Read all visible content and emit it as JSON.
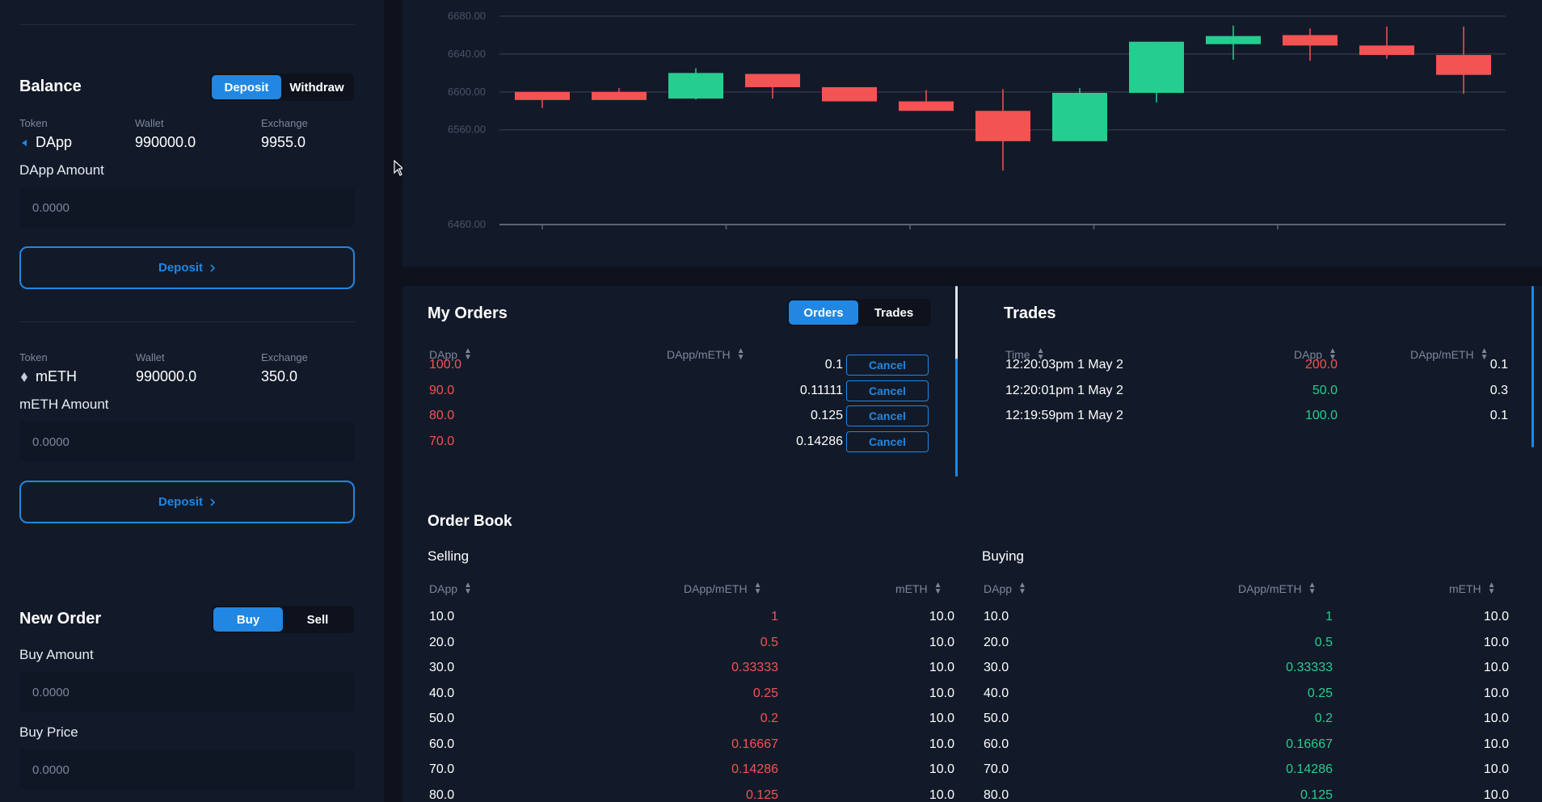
{
  "colors": {
    "accent": "#2187e2",
    "sell": "#f45353",
    "buy": "#25ce8f",
    "panel": "#121a29",
    "background": "#0d121d"
  },
  "balance": {
    "title": "Balance",
    "tabs": [
      {
        "label": "Deposit",
        "active": true
      },
      {
        "label": "Withdraw",
        "active": false
      }
    ],
    "col_labels": {
      "token": "Token",
      "wallet": "Wallet",
      "exchange": "Exchange"
    },
    "dapp": {
      "icon": "dapp-token-icon",
      "token": "DApp",
      "wallet": "990000.0",
      "exchange": "9955.0",
      "amount_label": "DApp Amount",
      "amount_placeholder": "0.0000",
      "button": "Deposit"
    },
    "meth": {
      "icon": "eth-diamond-icon",
      "token": "mETH",
      "wallet": "990000.0",
      "exchange": "350.0",
      "amount_label": "mETH Amount",
      "amount_placeholder": "0.0000",
      "button": "Deposit"
    }
  },
  "new_order": {
    "title": "New Order",
    "tabs": [
      {
        "label": "Buy",
        "active": true
      },
      {
        "label": "Sell",
        "active": false
      }
    ],
    "amount_label": "Buy Amount",
    "amount_placeholder": "0.0000",
    "price_label": "Buy Price",
    "price_placeholder": "0.0000"
  },
  "chart_data": {
    "type": "candlestick",
    "y_ticks": [
      "6680.00",
      "6640.00",
      "6600.00",
      "6560.00",
      "6460.00"
    ],
    "ylim": [
      6460,
      6680
    ],
    "grid": true,
    "candles": [
      {
        "open": 6600,
        "close": 6593,
        "high": 6600,
        "low": 6583
      },
      {
        "open": 6600,
        "close": 6593,
        "high": 6604,
        "low": 6593
      },
      {
        "open": 6593,
        "close": 6620,
        "high": 6625,
        "low": 6592
      },
      {
        "open": 6619,
        "close": 6605,
        "high": 6619,
        "low": 6593
      },
      {
        "open": 6605,
        "close": 6590,
        "high": 6605,
        "low": 6590
      },
      {
        "open": 6590,
        "close": 6580,
        "high": 6602,
        "low": 6580
      },
      {
        "open": 6580,
        "close": 6548,
        "high": 6603,
        "low": 6517
      },
      {
        "open": 6548,
        "close": 6599,
        "high": 6604,
        "low": 6548
      },
      {
        "open": 6599,
        "close": 6653,
        "high": 6653,
        "low": 6589
      },
      {
        "open": 6652,
        "close": 6659,
        "high": 6670,
        "low": 6634
      },
      {
        "open": 6660,
        "close": 6649,
        "high": 6667,
        "low": 6633
      },
      {
        "open": 6649,
        "close": 6639,
        "high": 6669,
        "low": 6635
      },
      {
        "open": 6639,
        "close": 6618,
        "high": 6669,
        "low": 6598
      }
    ]
  },
  "my_orders": {
    "title": "My Orders",
    "tabs": [
      {
        "label": "Orders",
        "active": true
      },
      {
        "label": "Trades",
        "active": false
      }
    ],
    "headers": {
      "amount": "DApp",
      "price": "DApp/mETH"
    },
    "cancel_label": "Cancel",
    "rows": [
      {
        "amount": "100.0",
        "price": "0.1"
      },
      {
        "amount": "90.0",
        "price": "0.11111"
      },
      {
        "amount": "80.0",
        "price": "0.125"
      },
      {
        "amount": "70.0",
        "price": "0.14286"
      }
    ]
  },
  "trades": {
    "title": "Trades",
    "headers": {
      "time": "Time",
      "amount": "DApp",
      "price": "DApp/mETH"
    },
    "rows": [
      {
        "time": "12:20:03pm 1 May 2",
        "amount": "200.0",
        "price": "0.1",
        "side": "sell"
      },
      {
        "time": "12:20:01pm 1 May 2",
        "amount": "50.0",
        "price": "0.3",
        "side": "buy"
      },
      {
        "time": "12:19:59pm 1 May 2",
        "amount": "100.0",
        "price": "0.1",
        "side": "buy"
      }
    ]
  },
  "order_book": {
    "title": "Order Book",
    "selling_label": "Selling",
    "buying_label": "Buying",
    "headers": {
      "amount": "DApp",
      "price": "DApp/mETH",
      "total": "mETH"
    },
    "selling": [
      {
        "amount": "10.0",
        "price": "1",
        "total": "10.0"
      },
      {
        "amount": "20.0",
        "price": "0.5",
        "total": "10.0"
      },
      {
        "amount": "30.0",
        "price": "0.33333",
        "total": "10.0"
      },
      {
        "amount": "40.0",
        "price": "0.25",
        "total": "10.0"
      },
      {
        "amount": "50.0",
        "price": "0.2",
        "total": "10.0"
      },
      {
        "amount": "60.0",
        "price": "0.16667",
        "total": "10.0"
      },
      {
        "amount": "70.0",
        "price": "0.14286",
        "total": "10.0"
      },
      {
        "amount": "80.0",
        "price": "0.125",
        "total": "10.0"
      }
    ],
    "buying": [
      {
        "amount": "10.0",
        "price": "1",
        "total": "10.0"
      },
      {
        "amount": "20.0",
        "price": "0.5",
        "total": "10.0"
      },
      {
        "amount": "30.0",
        "price": "0.33333",
        "total": "10.0"
      },
      {
        "amount": "40.0",
        "price": "0.25",
        "total": "10.0"
      },
      {
        "amount": "50.0",
        "price": "0.2",
        "total": "10.0"
      },
      {
        "amount": "60.0",
        "price": "0.16667",
        "total": "10.0"
      },
      {
        "amount": "70.0",
        "price": "0.14286",
        "total": "10.0"
      },
      {
        "amount": "80.0",
        "price": "0.125",
        "total": "10.0"
      }
    ]
  }
}
